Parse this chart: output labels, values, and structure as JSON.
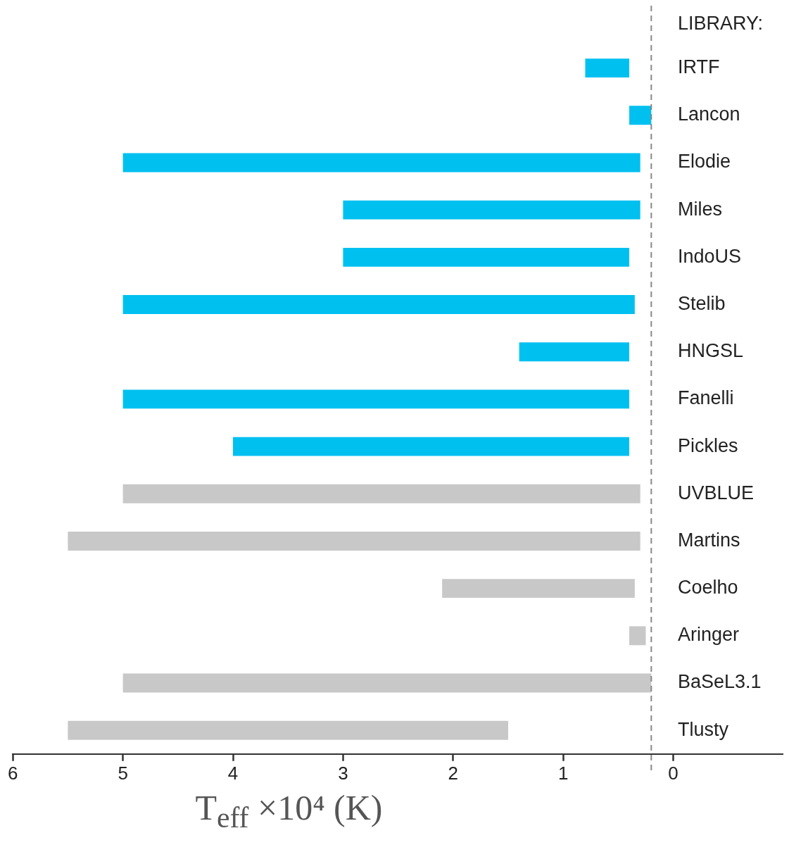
{
  "chart_data": {
    "type": "bar",
    "orientation": "horizontal",
    "xlabel": "T$_{eff}$ ×10⁴ (K)",
    "annotations": [
      "LIBRARY:"
    ],
    "categories": [
      "IRTF",
      "Lancon",
      "Elodie",
      "Miles",
      "IndoUS",
      "Stelib",
      "HNGSL",
      "Fanelli",
      "Pickles",
      "UVBLUE",
      "Martins",
      "Coelho",
      "Aringer",
      "BaSeL3.1",
      "Tlusty"
    ],
    "base": [
      0.4,
      0.2,
      0.3,
      0.3,
      0.4,
      0.35,
      0.4,
      0.4,
      0.4,
      0.3,
      0.3,
      0.35,
      0.25,
      0.2,
      1.5
    ],
    "values": [
      0.4,
      0.2,
      4.7,
      2.7,
      2.6,
      4.65,
      1.0,
      4.6,
      3.6,
      4.7,
      5.2,
      1.75,
      0.15,
      4.8,
      4.0
    ],
    "colors": [
      "#00c0f0",
      "#00c0f0",
      "#00c0f0",
      "#00c0f0",
      "#00c0f0",
      "#00c0f0",
      "#00c0f0",
      "#00c0f0",
      "#00c0f0",
      "#c8c8c8",
      "#c8c8c8",
      "#c8c8c8",
      "#c8c8c8",
      "#c8c8c8",
      "#c8c8c8"
    ],
    "xlim": [
      6,
      -1
    ],
    "xticks": [
      6,
      5,
      4,
      3,
      2,
      1,
      0
    ],
    "ref_lines": [
      {
        "axis": "x",
        "value": 0.2,
        "color": "#888888",
        "line_style": "dashed"
      }
    ],
    "grid": false,
    "legend": false
  }
}
